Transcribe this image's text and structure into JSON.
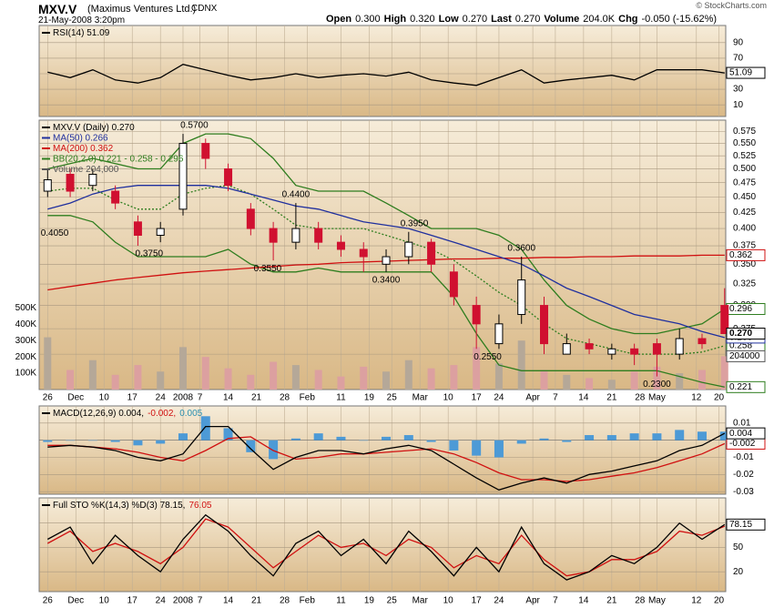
{
  "header": {
    "symbol": "MXV.V",
    "name": "(Maximus Ventures Ltd.)",
    "exchange": "CDNX",
    "datetime": "21-May-2008 3:20pm",
    "copyright": "© StockCharts.com",
    "quote": [
      {
        "label": "Open",
        "value": "0.300"
      },
      {
        "label": "High",
        "value": "0.320"
      },
      {
        "label": "Low",
        "value": "0.270"
      },
      {
        "label": "Last",
        "value": "0.270"
      },
      {
        "label": "Volume",
        "value": "204.0K"
      },
      {
        "label": "Chg",
        "value": "-0.050 (-15.62%)"
      }
    ]
  },
  "xaxis": {
    "x": [
      0,
      4,
      8,
      12,
      16,
      20,
      24,
      28,
      32,
      36,
      40,
      44,
      48,
      52,
      56,
      60,
      64,
      68,
      72,
      76,
      80,
      84,
      88,
      92,
      96,
      100,
      104,
      108,
      112,
      116,
      120
    ],
    "xlim": [
      -1.5,
      120.2
    ],
    "xticks": [
      {
        "value": 0,
        "label": "26"
      },
      {
        "value": 5,
        "label": "Dec"
      },
      {
        "value": 10,
        "label": "10"
      },
      {
        "value": 15,
        "label": "17"
      },
      {
        "value": 20,
        "label": "24"
      },
      {
        "value": 24,
        "label": "2008"
      },
      {
        "value": 27,
        "label": "7"
      },
      {
        "value": 32,
        "label": "14"
      },
      {
        "value": 37,
        "label": "21"
      },
      {
        "value": 42,
        "label": "28"
      },
      {
        "value": 46,
        "label": "Feb"
      },
      {
        "value": 52,
        "label": "11"
      },
      {
        "value": 57,
        "label": "19"
      },
      {
        "value": 61,
        "label": "25"
      },
      {
        "value": 66,
        "label": "Mar"
      },
      {
        "value": 71,
        "label": "10"
      },
      {
        "value": 76,
        "label": "17"
      },
      {
        "value": 80,
        "label": "24"
      },
      {
        "value": 86,
        "label": "Apr"
      },
      {
        "value": 90,
        "label": "7"
      },
      {
        "value": 95,
        "label": "14"
      },
      {
        "value": 100,
        "label": "21"
      },
      {
        "value": 105,
        "label": "28"
      },
      {
        "value": 108,
        "label": "May"
      },
      {
        "value": 115,
        "label": "12"
      },
      {
        "value": 119,
        "label": "20"
      }
    ]
  },
  "chart_data": [
    {
      "type": "line",
      "legend": [
        [
          {
            "text": "RSI(14) 51.09",
            "color": "#000000"
          }
        ]
      ],
      "ylim": [
        -5,
        112
      ],
      "yticks": [
        10,
        30,
        50,
        70,
        90
      ],
      "grid": true,
      "series": [
        {
          "color": "#000000",
          "end_label": "51.09",
          "values": [
            52,
            45,
            55,
            42,
            38,
            45,
            62,
            55,
            48,
            42,
            45,
            50,
            45,
            48,
            50,
            47,
            52,
            42,
            38,
            35,
            45,
            55,
            38,
            42,
            45,
            48,
            42,
            55,
            55,
            55,
            51.09
          ]
        }
      ]
    },
    {
      "type": "candlestick",
      "log": true,
      "grid": true,
      "legend": [
        [
          {
            "text": "MXV.V (Daily) 0.270",
            "color": "#000000"
          }
        ],
        [
          {
            "text": "MA(50) 0.266",
            "color": "#1f2f9e"
          }
        ],
        [
          {
            "text": "MA(200) 0.362",
            "color": "#d01010"
          }
        ],
        [
          {
            "text": "BB(20,2.0) 0.221 - 0.258 - 0.296",
            "color": "#2e7d1e"
          }
        ],
        [
          {
            "text": "Volume 204,000",
            "color": "#555555"
          }
        ]
      ],
      "ylim": [
        0.219,
        0.6
      ],
      "yticks": [
        {
          "value": 0.25,
          "label": "0.250"
        },
        0.275,
        {
          "value": 0.3,
          "label": "0.300"
        },
        0.325,
        {
          "value": 0.35,
          "label": "0.350"
        },
        0.375,
        {
          "value": 0.4,
          "label": "0.400"
        },
        0.425,
        {
          "value": 0.45,
          "label": "0.450"
        },
        0.475,
        {
          "value": 0.5,
          "label": "0.500"
        },
        0.525,
        {
          "value": 0.55,
          "label": "0.550"
        },
        0.575
      ],
      "up_color": "#000000",
      "down_color": "#d01030",
      "end_label": "0.270",
      "open": [
        0.46,
        0.49,
        0.47,
        0.46,
        0.41,
        0.39,
        0.43,
        0.55,
        0.5,
        0.43,
        0.4,
        0.38,
        0.4,
        0.38,
        0.37,
        0.35,
        0.36,
        0.38,
        0.34,
        0.3,
        0.26,
        0.29,
        0.3,
        0.25,
        0.26,
        0.25,
        0.255,
        0.26,
        0.25,
        0.265,
        0.3
      ],
      "high": [
        0.5,
        0.5,
        0.5,
        0.47,
        0.42,
        0.41,
        0.57,
        0.56,
        0.51,
        0.44,
        0.41,
        0.44,
        0.41,
        0.39,
        0.38,
        0.37,
        0.395,
        0.385,
        0.35,
        0.31,
        0.29,
        0.36,
        0.31,
        0.27,
        0.265,
        0.26,
        0.26,
        0.265,
        0.275,
        0.27,
        0.32
      ],
      "low": [
        0.45,
        0.45,
        0.46,
        0.43,
        0.375,
        0.38,
        0.42,
        0.5,
        0.46,
        0.39,
        0.355,
        0.37,
        0.37,
        0.36,
        0.34,
        0.34,
        0.35,
        0.34,
        0.3,
        0.255,
        0.255,
        0.28,
        0.25,
        0.25,
        0.25,
        0.245,
        0.24,
        0.23,
        0.245,
        0.255,
        0.27
      ],
      "close": [
        0.48,
        0.46,
        0.49,
        0.44,
        0.39,
        0.4,
        0.55,
        0.52,
        0.47,
        0.4,
        0.38,
        0.4,
        0.38,
        0.37,
        0.36,
        0.36,
        0.38,
        0.35,
        0.31,
        0.28,
        0.28,
        0.33,
        0.26,
        0.26,
        0.255,
        0.255,
        0.25,
        0.25,
        0.265,
        0.26,
        0.27
      ],
      "volume": [
        320000,
        120000,
        180000,
        90000,
        150000,
        110000,
        260000,
        200000,
        130000,
        90000,
        170000,
        150000,
        120000,
        80000,
        140000,
        110000,
        180000,
        130000,
        150000,
        260000,
        160000,
        300000,
        120000,
        90000,
        70000,
        60000,
        110000,
        140000,
        100000,
        120000,
        204000
      ],
      "volume_up_color": "#b5a898",
      "volume_down_color": "#dca0a0",
      "volume_end_label": "204000",
      "vlim": [
        0,
        1650000
      ],
      "vticks": [
        {
          "value": 100000,
          "label": "100K"
        },
        {
          "value": 200000,
          "label": "200K"
        },
        {
          "value": 300000,
          "label": "300K"
        },
        {
          "value": 400000,
          "label": "400K"
        },
        {
          "value": 500000,
          "label": "500K"
        }
      ],
      "series": [
        {
          "color": "#2e7d1e",
          "end_label": "0.296",
          "values": [
            0.5,
            0.51,
            0.52,
            0.51,
            0.5,
            0.5,
            0.55,
            0.57,
            0.57,
            0.56,
            0.52,
            0.47,
            0.46,
            0.46,
            0.46,
            0.44,
            0.42,
            0.4,
            0.4,
            0.4,
            0.39,
            0.37,
            0.33,
            0.3,
            0.285,
            0.275,
            0.27,
            0.27,
            0.275,
            0.28,
            0.296
          ]
        },
        {
          "color": "#2e7d1e",
          "dash": true,
          "end_label": "0.258",
          "values": [
            0.46,
            0.465,
            0.465,
            0.445,
            0.43,
            0.43,
            0.455,
            0.465,
            0.47,
            0.455,
            0.43,
            0.405,
            0.4,
            0.4,
            0.4,
            0.39,
            0.38,
            0.37,
            0.355,
            0.335,
            0.315,
            0.3,
            0.28,
            0.265,
            0.26,
            0.255,
            0.25,
            0.25,
            0.25,
            0.252,
            0.258
          ]
        },
        {
          "color": "#2e7d1e",
          "end_label": "0.221",
          "values": [
            0.42,
            0.42,
            0.41,
            0.38,
            0.36,
            0.36,
            0.36,
            0.36,
            0.37,
            0.35,
            0.34,
            0.34,
            0.345,
            0.34,
            0.34,
            0.34,
            0.34,
            0.34,
            0.31,
            0.27,
            0.24,
            0.235,
            0.235,
            0.235,
            0.235,
            0.235,
            0.235,
            0.235,
            0.23,
            0.225,
            0.221
          ]
        },
        {
          "color": "#d01010",
          "end_label": "0.362",
          "values": [
            0.318,
            0.322,
            0.326,
            0.33,
            0.333,
            0.336,
            0.339,
            0.341,
            0.343,
            0.345,
            0.347,
            0.349,
            0.35,
            0.352,
            0.353,
            0.354,
            0.355,
            0.356,
            0.357,
            0.357,
            0.358,
            0.358,
            0.359,
            0.359,
            0.36,
            0.36,
            0.361,
            0.361,
            0.361,
            0.362,
            0.362
          ]
        },
        {
          "color": "#1f2f9e",
          "end_label": "0.266",
          "values": [
            0.43,
            0.44,
            0.455,
            0.465,
            0.47,
            0.47,
            0.47,
            0.47,
            0.465,
            0.455,
            0.445,
            0.435,
            0.43,
            0.42,
            0.41,
            0.405,
            0.4,
            0.39,
            0.38,
            0.37,
            0.36,
            0.35,
            0.335,
            0.32,
            0.31,
            0.3,
            0.29,
            0.285,
            0.28,
            0.272,
            0.266
          ]
        }
      ],
      "annotations": [
        {
          "value": 0.57,
          "label": "0.5700",
          "x": 26,
          "pos": "above"
        },
        {
          "value": 0.405,
          "label": "0.4050",
          "x": -1,
          "pos": "below"
        },
        {
          "value": 0.375,
          "label": "0.3750",
          "x": 18,
          "pos": "below"
        },
        {
          "value": 0.44,
          "label": "0.4400",
          "x": 44,
          "pos": "above"
        },
        {
          "value": 0.355,
          "label": "0.3550",
          "x": 39,
          "pos": "below"
        },
        {
          "value": 0.395,
          "label": "0.3950",
          "x": 65,
          "pos": "above"
        },
        {
          "value": 0.34,
          "label": "0.3400",
          "x": 60,
          "pos": "below"
        },
        {
          "value": 0.36,
          "label": "0.3600",
          "x": 84,
          "pos": "above"
        },
        {
          "value": 0.255,
          "label": "0.2550",
          "x": 78,
          "pos": "below"
        },
        {
          "value": 0.23,
          "label": "0.2300",
          "x": 108,
          "pos": "below"
        }
      ]
    },
    {
      "type": "line",
      "grid": true,
      "legend": [
        [
          {
            "text": "MACD(12,26,9) 0.004,",
            "color": "#000000"
          },
          {
            "text": "-0.002,",
            "color": "#d01010"
          },
          {
            "text": "0.005",
            "color": "#2a8fb0"
          }
        ]
      ],
      "ylim": [
        -0.0315,
        0.02
      ],
      "yticks": [
        -0.03,
        -0.02,
        -0.01,
        0.01
      ],
      "series": [
        {
          "color": "#4d9ad6",
          "style": "bar",
          "values": [
            -0.001,
            0,
            0,
            -0.001,
            -0.003,
            -0.002,
            0.004,
            0.014,
            0.007,
            -0.007,
            -0.011,
            0.001,
            0.004,
            0.002,
            0,
            0.002,
            0.003,
            -0.001,
            -0.006,
            -0.009,
            -0.01,
            -0.002,
            0.001,
            -0.001,
            0.003,
            0.003,
            0.004,
            0.004,
            0.006,
            0.005,
            0.005
          ]
        },
        {
          "color": "#d01010",
          "end_label": "-0.002",
          "values": [
            -0.003,
            -0.003,
            -0.004,
            -0.005,
            -0.007,
            -0.01,
            -0.012,
            -0.006,
            0.001,
            0.002,
            -0.006,
            -0.011,
            -0.01,
            -0.008,
            -0.008,
            -0.007,
            -0.006,
            -0.005,
            -0.008,
            -0.013,
            -0.019,
            -0.023,
            -0.023,
            -0.024,
            -0.023,
            -0.021,
            -0.019,
            -0.016,
            -0.012,
            -0.008,
            -0.002
          ]
        },
        {
          "color": "#000000",
          "end_label": "0.004",
          "values": [
            -0.004,
            -0.003,
            -0.004,
            -0.006,
            -0.01,
            -0.012,
            -0.008,
            0.008,
            0.008,
            -0.005,
            -0.017,
            -0.01,
            -0.006,
            -0.006,
            -0.008,
            -0.005,
            -0.003,
            -0.006,
            -0.014,
            -0.022,
            -0.029,
            -0.025,
            -0.022,
            -0.025,
            -0.02,
            -0.018,
            -0.015,
            -0.012,
            -0.006,
            -0.003,
            0.004
          ]
        }
      ]
    },
    {
      "type": "line",
      "grid": true,
      "legend": [
        [
          {
            "text": "Full STO %K(14,3) %D(3) 78.15,",
            "color": "#000000"
          },
          {
            "text": "76.05",
            "color": "#d01010"
          }
        ]
      ],
      "ylim": [
        -4.4,
        111
      ],
      "yticks": [
        20,
        50,
        80
      ],
      "series": [
        {
          "color": "#d01010",
          "values": [
            55,
            70,
            45,
            55,
            45,
            30,
            50,
            85,
            75,
            50,
            25,
            45,
            65,
            50,
            55,
            40,
            60,
            50,
            25,
            40,
            30,
            65,
            35,
            15,
            20,
            35,
            35,
            45,
            70,
            65,
            76.05
          ]
        },
        {
          "color": "#000000",
          "end_label": "78.15",
          "values": [
            60,
            75,
            30,
            65,
            40,
            20,
            60,
            90,
            70,
            40,
            15,
            55,
            70,
            40,
            60,
            30,
            70,
            45,
            15,
            50,
            20,
            75,
            30,
            10,
            20,
            40,
            30,
            50,
            80,
            60,
            78.15
          ]
        }
      ]
    }
  ]
}
